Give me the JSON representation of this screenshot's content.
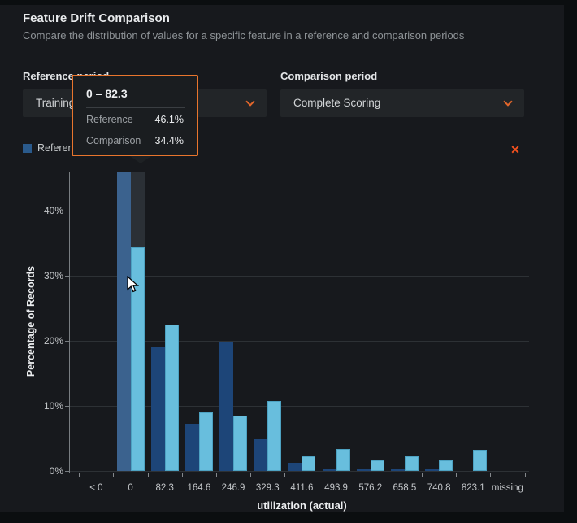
{
  "header": {
    "title": "Feature Drift Comparison",
    "subtitle": "Compare the distribution of values for a specific feature in a reference and comparison periods"
  },
  "controls": {
    "reference": {
      "label": "Reference period",
      "value": "Training"
    },
    "comparison": {
      "label": "Comparison period",
      "value": "Complete Scoring"
    }
  },
  "legend": [
    {
      "label": "Reference",
      "color": "#2a5a8c"
    },
    {
      "label": "Comparison",
      "color": "#68bedd"
    }
  ],
  "close_label": "✕",
  "tooltip": {
    "title": "0 – 82.3",
    "rows": [
      {
        "label": "Reference",
        "value": "46.1%"
      },
      {
        "label": "Comparison",
        "value": "34.4%"
      }
    ]
  },
  "chart_data": {
    "type": "bar",
    "categories": [
      "< 0",
      "0",
      "82.3",
      "164.6",
      "246.9",
      "329.3",
      "411.6",
      "493.9",
      "576.2",
      "658.5",
      "740.8",
      "823.1",
      "missing"
    ],
    "series": [
      {
        "name": "Reference",
        "color": "#1d4578",
        "values": [
          0,
          46.1,
          19.0,
          7.3,
          19.9,
          4.9,
          1.3,
          0.4,
          0.3,
          0.3,
          0.2,
          0,
          0
        ]
      },
      {
        "name": "Comparison",
        "color": "#68bedd",
        "values": [
          0,
          34.4,
          22.5,
          9.0,
          8.5,
          10.8,
          2.3,
          3.4,
          1.6,
          2.3,
          1.6,
          3.2,
          0
        ]
      }
    ],
    "title": "",
    "xlabel": "utilization (actual)",
    "ylabel": "Percentage of Records",
    "ylim": [
      0,
      46
    ],
    "yticks": [
      "0%",
      "10%",
      "20%",
      "30%",
      "40%"
    ],
    "grid": true,
    "legend_position": "top-left",
    "hovered_category": "0",
    "hovered_reference_color": "#3b628e",
    "hover_band_color": "#2b3036"
  },
  "colors": {
    "accent_orange": "#e8752d",
    "close_red": "#f4511e",
    "card_bg": "#17191d",
    "page_bg": "#0b0e10",
    "reference_bar": "#1d4578",
    "comparison_bar": "#68bedd"
  }
}
